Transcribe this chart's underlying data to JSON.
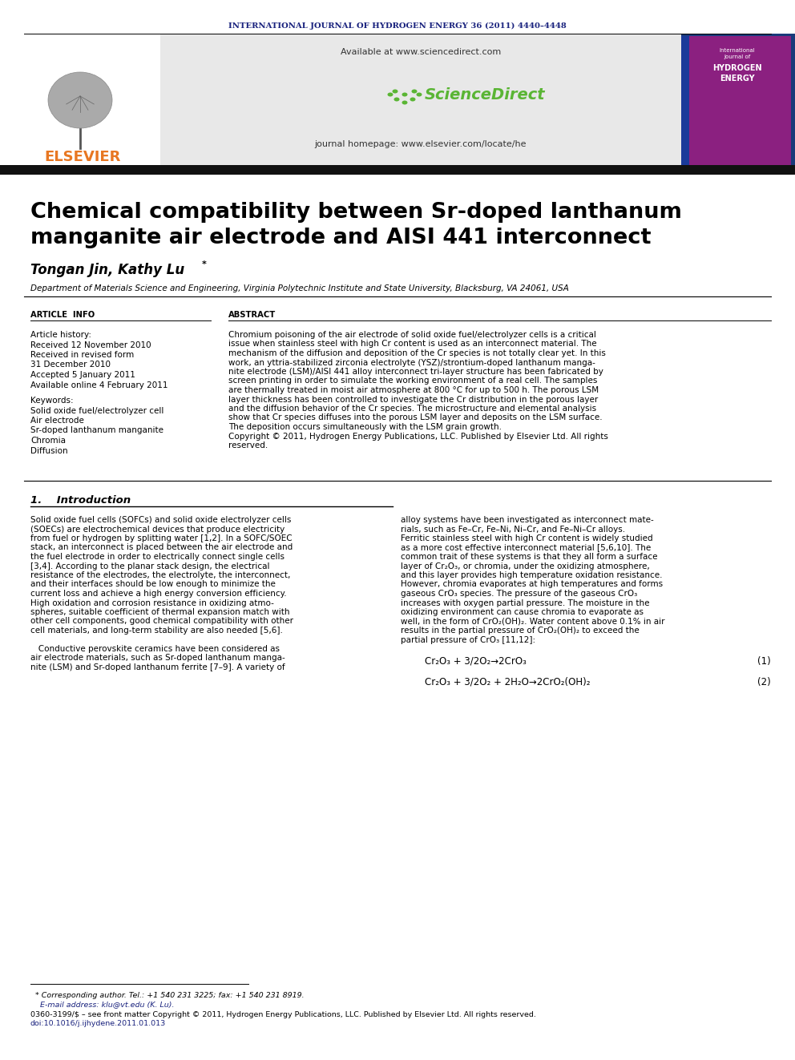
{
  "journal_header": "INTERNATIONAL JOURNAL OF HYDROGEN ENERGY 36 (2011) 4440–4448",
  "journal_header_color": "#1a237e",
  "title_line1": "Chemical compatibility between Sr-doped lanthanum",
  "title_line2": "manganite air electrode and AISI 441 interconnect",
  "authors_main": "Tongan Jin, Kathy Lu",
  "authors_star": "*",
  "affiliation": "Department of Materials Science and Engineering, Virginia Polytechnic Institute and State University, Blacksburg, VA 24061, USA",
  "article_info_header": "ARTICLE  INFO",
  "abstract_header": "ABSTRACT",
  "article_history_label": "Article history:",
  "received1": "Received 12 November 2010",
  "revised": "Received in revised form",
  "revised2": "31 December 2010",
  "accepted": "Accepted 5 January 2011",
  "available": "Available online 4 February 2011",
  "keywords_label": "Keywords:",
  "kw1": "Solid oxide fuel/electrolyzer cell",
  "kw2": "Air electrode",
  "kw3": "Sr-doped lanthanum manganite",
  "kw4": "Chromia",
  "kw5": "Diffusion",
  "abstract_lines": [
    "Chromium poisoning of the air electrode of solid oxide fuel/electrolyzer cells is a critical",
    "issue when stainless steel with high Cr content is used as an interconnect material. The",
    "mechanism of the diffusion and deposition of the Cr species is not totally clear yet. In this",
    "work, an yttria-stabilized zirconia electrolyte (YSZ)/strontium-doped lanthanum manga-",
    "nite electrode (LSM)/AISI 441 alloy interconnect tri-layer structure has been fabricated by",
    "screen printing in order to simulate the working environment of a real cell. The samples",
    "are thermally treated in moist air atmosphere at 800 °C for up to 500 h. The porous LSM",
    "layer thickness has been controlled to investigate the Cr distribution in the porous layer",
    "and the diffusion behavior of the Cr species. The microstructure and elemental analysis",
    "show that Cr species diffuses into the porous LSM layer and deposits on the LSM surface.",
    "The deposition occurs simultaneously with the LSM grain growth.",
    "Copyright © 2011, Hydrogen Energy Publications, LLC. Published by Elsevier Ltd. All rights",
    "reserved."
  ],
  "intro_header": "1.    Introduction",
  "intro_left_lines": [
    "Solid oxide fuel cells (SOFCs) and solid oxide electrolyzer cells",
    "(SOECs) are electrochemical devices that produce electricity",
    "from fuel or hydrogen by splitting water [1,2]. In a SOFC/SOEC",
    "stack, an interconnect is placed between the air electrode and",
    "the fuel electrode in order to electrically connect single cells",
    "[3,4]. According to the planar stack design, the electrical",
    "resistance of the electrodes, the electrolyte, the interconnect,",
    "and their interfaces should be low enough to minimize the",
    "current loss and achieve a high energy conversion efficiency.",
    "High oxidation and corrosion resistance in oxidizing atmo-",
    "spheres, suitable coefficient of thermal expansion match with",
    "other cell components, good chemical compatibility with other",
    "cell materials, and long-term stability are also needed [5,6].",
    "",
    "   Conductive perovskite ceramics have been considered as",
    "air electrode materials, such as Sr-doped lanthanum manga-",
    "nite (LSM) and Sr-doped lanthanum ferrite [7–9]. A variety of"
  ],
  "intro_right_lines": [
    "alloy systems have been investigated as interconnect mate-",
    "rials, such as Fe–Cr, Fe–Ni, Ni–Cr, and Fe–Ni–Cr alloys.",
    "Ferritic stainless steel with high Cr content is widely studied",
    "as a more cost effective interconnect material [5,6,10]. The",
    "common trait of these systems is that they all form a surface",
    "layer of Cr₂O₃, or chromia, under the oxidizing atmosphere,",
    "and this layer provides high temperature oxidation resistance.",
    "However, chromia evaporates at high temperatures and forms",
    "gaseous CrO₃ species. The pressure of the gaseous CrO₃",
    "increases with oxygen partial pressure. The moisture in the",
    "oxidizing environment can cause chromia to evaporate as",
    "well, in the form of CrO₂(OH)₂. Water content above 0.1% in air",
    "results in the partial pressure of CrO₂(OH)₂ to exceed the",
    "partial pressure of CrO₃ [11,12]:"
  ],
  "eq1_text": "Cr₂O₃ + 3/2O₂→2CrO₃",
  "eq1_label": "(1)",
  "eq2_text": "Cr₂O₃ + 3/2O₂ + 2H₂O→2CrO₂(OH)₂",
  "eq2_label": "(2)",
  "footnote_line1": "  * Corresponding author. Tel.: +1 540 231 3225; fax: +1 540 231 8919.",
  "footnote_line2": "    E-mail address: klu@vt.edu (K. Lu).",
  "footnote_line3": "0360-3199/$ – see front matter Copyright © 2011, Hydrogen Energy Publications, LLC. Published by Elsevier Ltd. All rights reserved.",
  "footnote_line4": "doi:10.1016/j.ijhydene.2011.01.013",
  "elsevier_color": "#e87722",
  "link_color": "#1a237e",
  "header_bar_color": "#111111",
  "gray_bg_color": "#e8e8e8",
  "background_color": "#ffffff",
  "text_color": "#000000",
  "available_at": "Available at www.sciencedirect.com",
  "journal_homepage": "journal homepage: www.elsevier.com/locate/he",
  "sciencedirect_text": "ScienceDirect"
}
